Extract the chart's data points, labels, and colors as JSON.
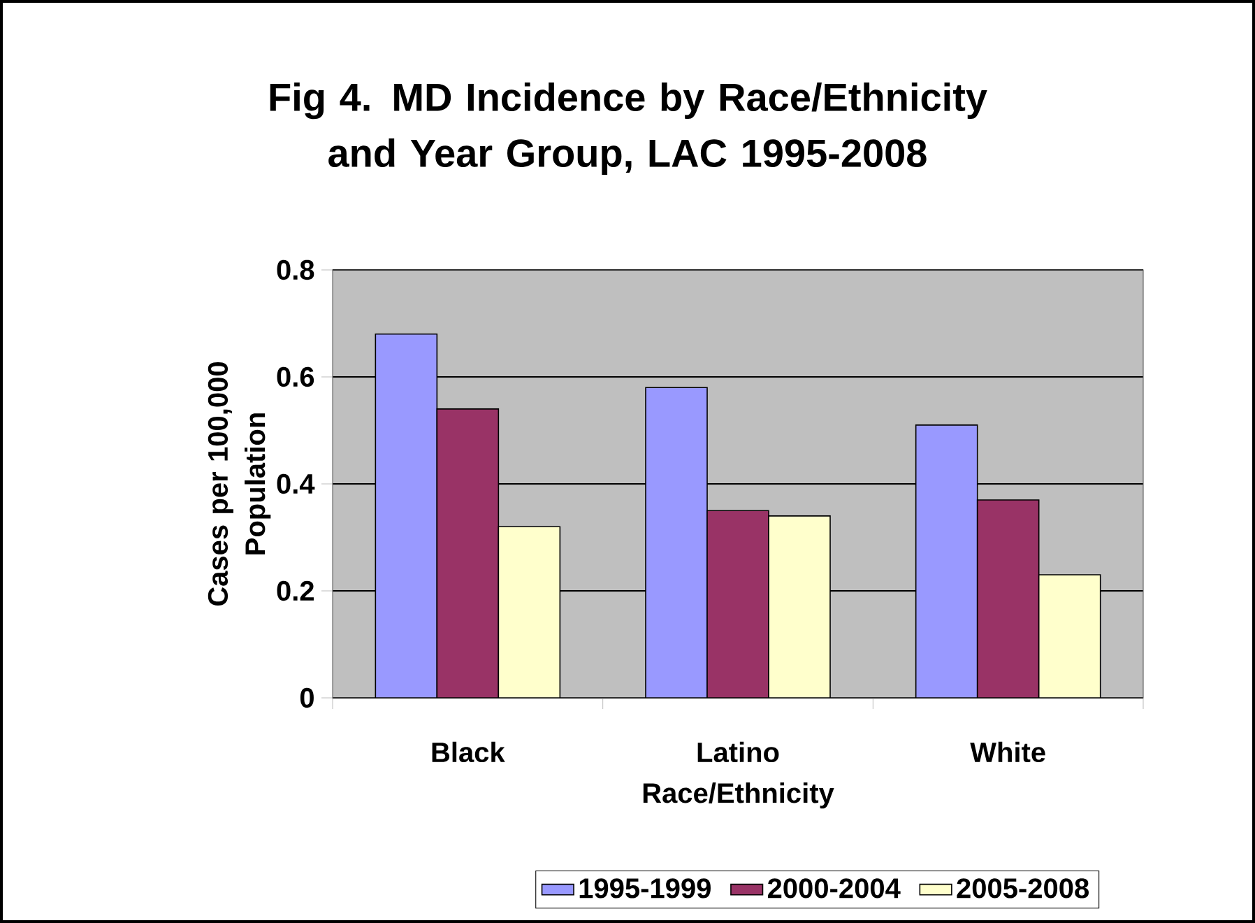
{
  "chart_data": {
    "type": "bar",
    "title": "Fig 4. MD Incidence by Race/Ethnicity and Year Group, LAC 1995-2008",
    "xlabel": "Race/Ethnicity",
    "ylabel": "Cases per 100,000 Population",
    "categories": [
      "Black",
      "Latino",
      "White"
    ],
    "series": [
      {
        "name": "1995-1999",
        "color": "#9999ff",
        "values": [
          0.68,
          0.58,
          0.51
        ]
      },
      {
        "name": "2000-2004",
        "color": "#993366",
        "values": [
          0.54,
          0.35,
          0.37
        ]
      },
      {
        "name": "2005-2008",
        "color": "#ffffcc",
        "values": [
          0.32,
          0.34,
          0.23
        ]
      }
    ],
    "ylim": [
      0,
      0.8
    ],
    "yticks": [
      0,
      0.2,
      0.4,
      0.6,
      0.8
    ],
    "grid": "y",
    "legend": "bottom"
  }
}
